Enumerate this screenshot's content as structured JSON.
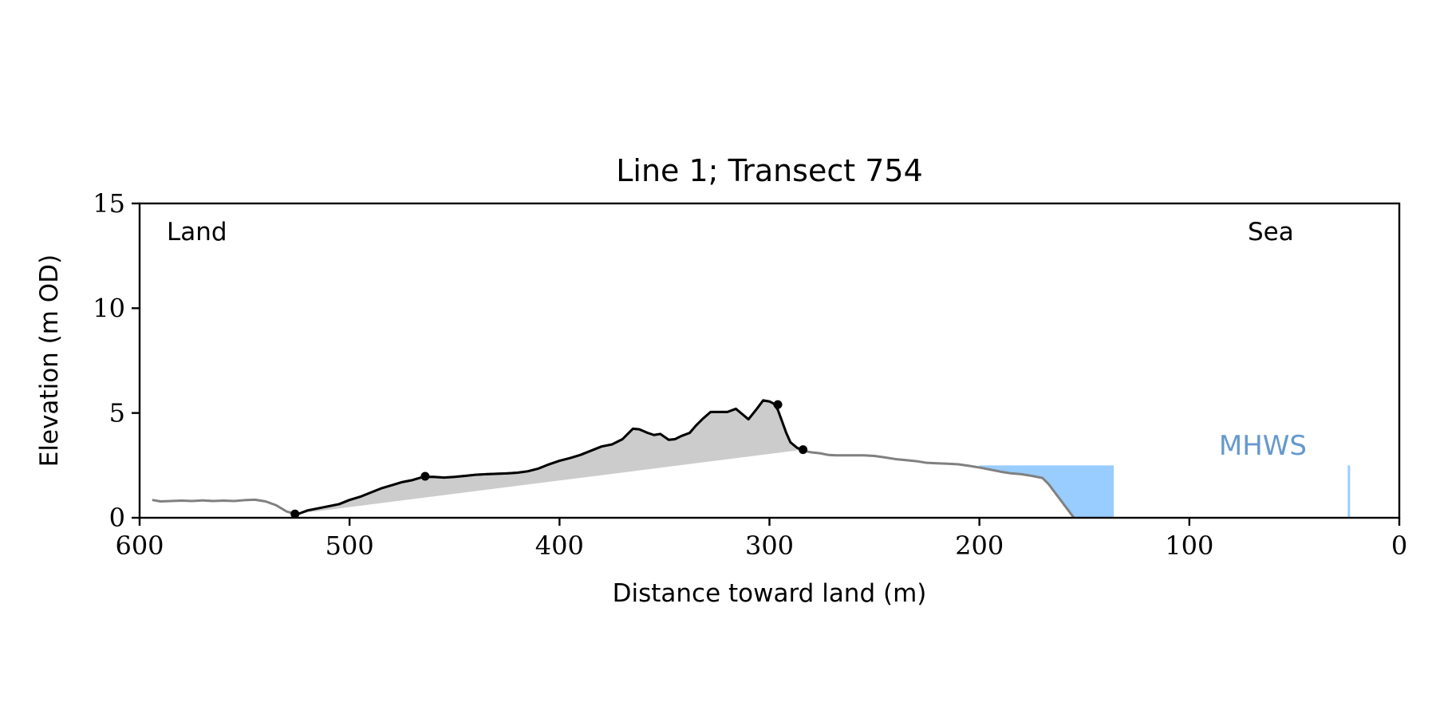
{
  "chart_data": {
    "type": "line",
    "title": "Line 1; Transect 754",
    "xlabel": "Distance toward land (m)",
    "ylabel": "Elevation (m OD)",
    "xlim": [
      600,
      0
    ],
    "ylim": [
      0,
      15
    ],
    "x_ticks": [
      600,
      500,
      400,
      300,
      200,
      100,
      0
    ],
    "y_ticks": [
      0,
      5,
      10,
      15
    ],
    "x_tick_labels": [
      "600",
      "500",
      "400",
      "300",
      "200",
      "100",
      "0"
    ],
    "y_tick_labels": [
      "0",
      "5",
      "10",
      "15"
    ],
    "grid": false,
    "annotations": {
      "land": "Land",
      "sea": "Sea",
      "mhws": "MHWS"
    },
    "mhws_level": 2.5,
    "mhws_marker_x": 24,
    "colors": {
      "profile": "#808080",
      "dune": "#000000",
      "dune_fill": "#cccccc",
      "water": "#99ccff",
      "mhws": "#6699cc"
    },
    "profile": {
      "x": [
        594,
        590,
        585,
        580,
        575,
        570,
        565,
        560,
        555,
        550,
        545,
        540,
        535,
        530,
        526,
        524,
        520,
        515,
        510,
        505,
        500,
        495,
        490,
        485,
        480,
        475,
        470,
        465,
        460,
        455,
        450,
        445,
        440,
        435,
        430,
        425,
        420,
        415,
        410,
        405,
        400,
        395,
        390,
        385,
        380,
        375,
        370,
        367,
        365,
        362,
        358,
        355,
        352,
        348,
        345,
        342,
        338,
        335,
        332,
        328,
        324,
        320,
        316,
        313,
        310,
        306,
        303,
        300,
        298,
        296,
        294,
        292,
        290,
        287,
        284,
        280,
        276,
        272,
        268,
        264,
        260,
        255,
        250,
        245,
        240,
        235,
        230,
        225,
        220,
        215,
        210,
        205,
        200,
        195,
        190,
        185,
        180,
        175,
        170,
        167,
        164,
        161,
        158,
        155
      ],
      "y": [
        0.85,
        0.78,
        0.8,
        0.82,
        0.8,
        0.83,
        0.8,
        0.82,
        0.8,
        0.84,
        0.86,
        0.78,
        0.6,
        0.3,
        0.18,
        0.2,
        0.35,
        0.45,
        0.55,
        0.65,
        0.85,
        1.0,
        1.2,
        1.4,
        1.55,
        1.7,
        1.8,
        1.95,
        1.95,
        1.92,
        1.95,
        2.0,
        2.05,
        2.08,
        2.1,
        2.12,
        2.15,
        2.22,
        2.35,
        2.55,
        2.72,
        2.85,
        3.0,
        3.2,
        3.4,
        3.5,
        3.75,
        4.05,
        4.25,
        4.22,
        4.05,
        3.95,
        4.0,
        3.72,
        3.75,
        3.9,
        4.05,
        4.4,
        4.7,
        5.05,
        5.05,
        5.05,
        5.2,
        4.95,
        4.7,
        5.2,
        5.6,
        5.55,
        5.45,
        5.15,
        4.6,
        4.05,
        3.6,
        3.35,
        3.2,
        3.12,
        3.08,
        3.0,
        2.98,
        2.98,
        2.98,
        2.98,
        2.95,
        2.88,
        2.8,
        2.75,
        2.7,
        2.62,
        2.6,
        2.58,
        2.55,
        2.48,
        2.4,
        2.3,
        2.2,
        2.12,
        2.08,
        2.0,
        1.9,
        1.6,
        1.2,
        0.8,
        0.4,
        0.0
      ]
    },
    "dune_crest_points": [
      {
        "x": 526,
        "y": 0.18
      },
      {
        "x": 464,
        "y": 1.98
      },
      {
        "x": 296,
        "y": 5.4
      },
      {
        "x": 284,
        "y": 3.25
      }
    ],
    "dune_fill_baseline": [
      [
        526,
        0.18
      ],
      [
        284,
        3.25
      ]
    ],
    "water": {
      "level": 2.5,
      "x_range": [
        200,
        136
      ]
    }
  }
}
